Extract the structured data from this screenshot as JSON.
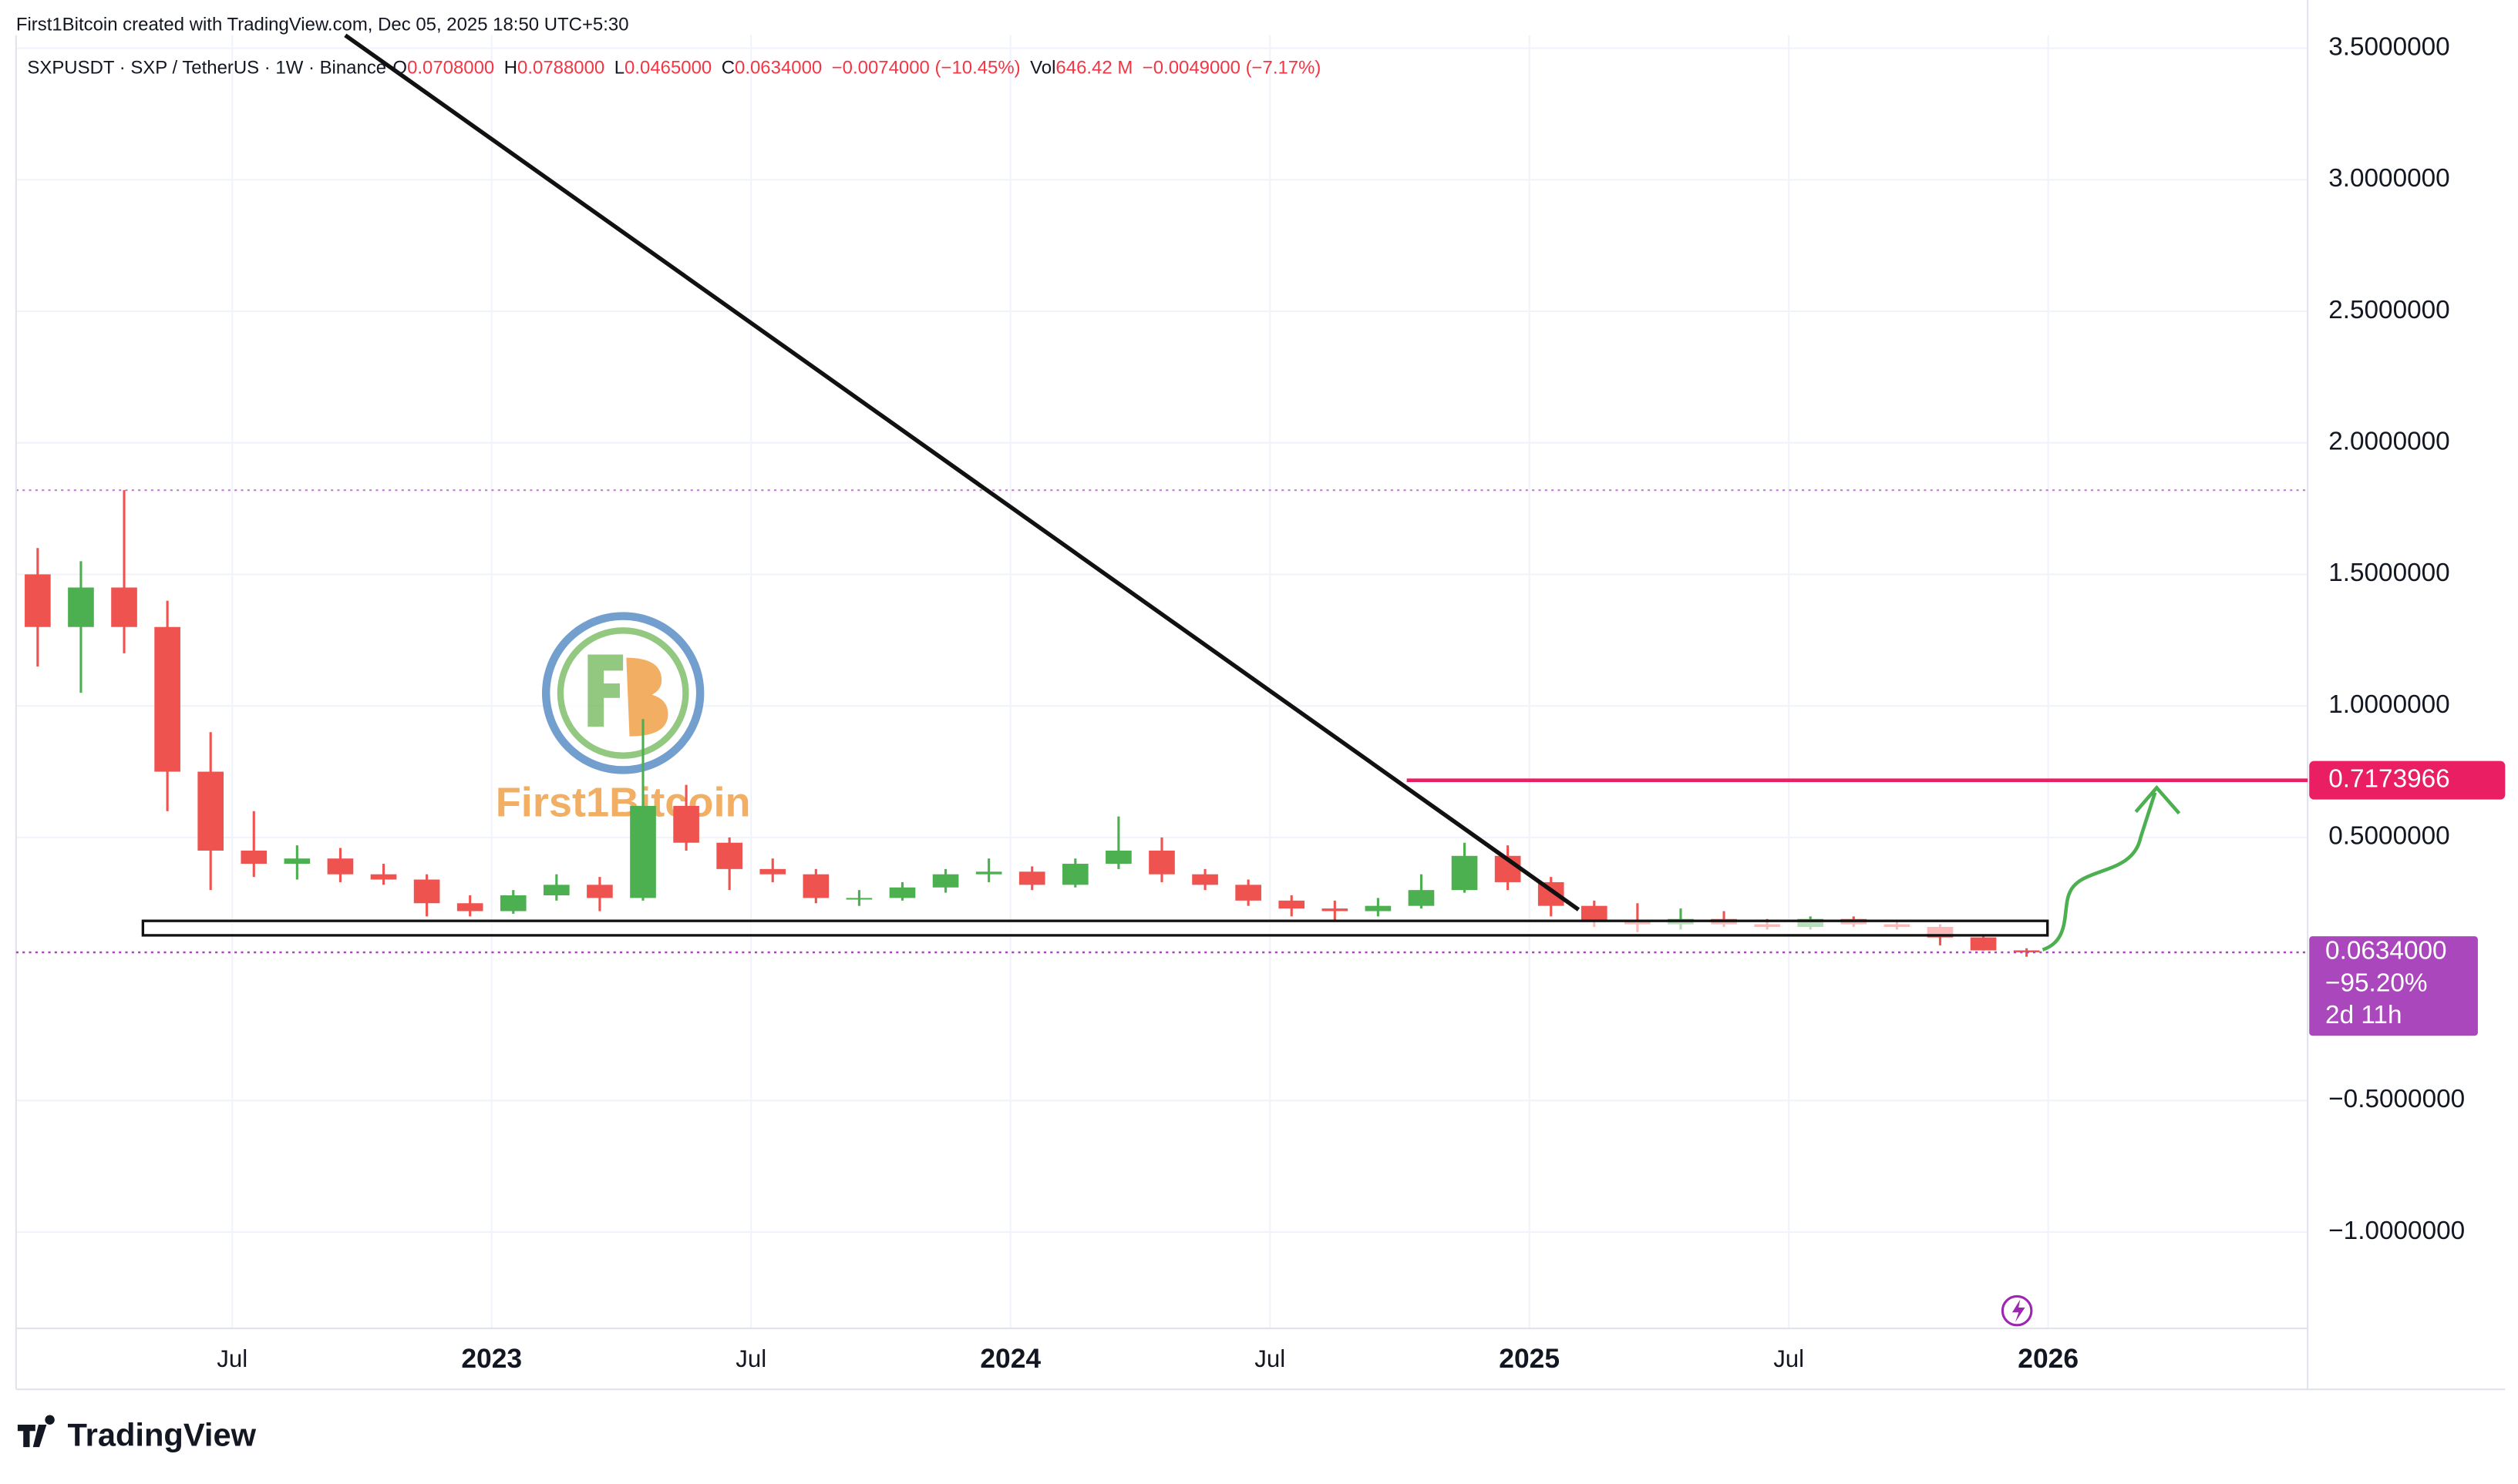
{
  "header": {
    "credit": "First1Bitcoin created with TradingView.com, Dec 05, 2025 18:50 UTC+5:30",
    "symbol": "SXPUSDT · SXP / TetherUS · 1W · Binance",
    "ohlc": [
      {
        "key": "O",
        "value": "0.0708000"
      },
      {
        "key": "H",
        "value": "0.0788000"
      },
      {
        "key": "L",
        "value": "0.0465000"
      },
      {
        "key": "C",
        "value": "0.0634000"
      }
    ],
    "change": "−0.0074000 (−10.45%)",
    "vol_key": "Vol",
    "vol": "646.42 M",
    "vol_change": "−0.0049000 (−7.17%)"
  },
  "watermark": "First1Bitcoin",
  "brand": "TradingView",
  "chart_data": {
    "type": "candlestick",
    "x": [
      "2022-02",
      "2022-03",
      "2022-04",
      "2022-05",
      "2022-06",
      "2022-07",
      "2022-08",
      "2022-09",
      "2022-10",
      "2022-11",
      "2022-12",
      "2023-01",
      "2023-02",
      "2023-03",
      "2023-04",
      "2023-05",
      "2023-06",
      "2023-07",
      "2023-08",
      "2023-09",
      "2023-10",
      "2023-11",
      "2023-12",
      "2024-01",
      "2024-02",
      "2024-03",
      "2024-04",
      "2024-05",
      "2024-06",
      "2024-07",
      "2024-08",
      "2024-09",
      "2024-10",
      "2024-11",
      "2024-12",
      "2025-01",
      "2025-02",
      "2025-03",
      "2025-04",
      "2025-05",
      "2025-06",
      "2025-07",
      "2025-08",
      "2025-09",
      "2025-10",
      "2025-11",
      "2025-12"
    ],
    "open": [
      1.5,
      1.3,
      1.45,
      1.3,
      0.75,
      0.45,
      0.4,
      0.42,
      0.36,
      0.34,
      0.25,
      0.22,
      0.28,
      0.32,
      0.27,
      0.62,
      0.48,
      0.38,
      0.36,
      0.27,
      0.27,
      0.31,
      0.36,
      0.37,
      0.32,
      0.4,
      0.45,
      0.36,
      0.32,
      0.26,
      0.23,
      0.22,
      0.24,
      0.3,
      0.43,
      0.33,
      0.24,
      0.18,
      0.17,
      0.19,
      0.17,
      0.16,
      0.19,
      0.17,
      0.16,
      0.12,
      0.0708
    ],
    "high": [
      1.6,
      1.55,
      1.82,
      1.4,
      0.9,
      0.6,
      0.47,
      0.46,
      0.4,
      0.36,
      0.28,
      0.3,
      0.36,
      0.35,
      0.95,
      0.7,
      0.5,
      0.42,
      0.38,
      0.3,
      0.33,
      0.38,
      0.42,
      0.39,
      0.42,
      0.58,
      0.5,
      0.38,
      0.34,
      0.28,
      0.26,
      0.27,
      0.36,
      0.48,
      0.47,
      0.35,
      0.26,
      0.25,
      0.23,
      0.22,
      0.19,
      0.2,
      0.2,
      0.18,
      0.17,
      0.13,
      0.0788
    ],
    "low": [
      1.15,
      1.05,
      1.2,
      0.6,
      0.3,
      0.35,
      0.34,
      0.33,
      0.32,
      0.2,
      0.2,
      0.21,
      0.26,
      0.22,
      0.26,
      0.45,
      0.3,
      0.33,
      0.25,
      0.24,
      0.26,
      0.29,
      0.33,
      0.3,
      0.31,
      0.38,
      0.33,
      0.3,
      0.24,
      0.2,
      0.18,
      0.2,
      0.23,
      0.29,
      0.3,
      0.2,
      0.16,
      0.14,
      0.15,
      0.16,
      0.15,
      0.15,
      0.16,
      0.15,
      0.09,
      0.07,
      0.0465
    ],
    "close": [
      1.3,
      1.45,
      1.3,
      0.75,
      0.45,
      0.4,
      0.42,
      0.36,
      0.34,
      0.25,
      0.22,
      0.28,
      0.32,
      0.27,
      0.62,
      0.48,
      0.38,
      0.36,
      0.27,
      0.27,
      0.31,
      0.36,
      0.37,
      0.32,
      0.4,
      0.45,
      0.36,
      0.32,
      0.26,
      0.23,
      0.22,
      0.24,
      0.3,
      0.43,
      0.33,
      0.24,
      0.18,
      0.17,
      0.19,
      0.17,
      0.16,
      0.19,
      0.17,
      0.16,
      0.12,
      0.0708,
      0.0634
    ],
    "up_color": "#4caf50",
    "down_color": "#ef5350",
    "xlim": [
      "2022-02",
      "2026-07"
    ],
    "xticks": [
      {
        "value": "2022-07",
        "label": "Jul"
      },
      {
        "value": "2023-01",
        "label": "2023"
      },
      {
        "value": "2023-07",
        "label": "Jul"
      },
      {
        "value": "2024-01",
        "label": "2024"
      },
      {
        "value": "2024-07",
        "label": "Jul"
      },
      {
        "value": "2025-01",
        "label": "2025"
      },
      {
        "value": "2025-07",
        "label": "Jul"
      },
      {
        "value": "2026-01",
        "label": "2026"
      }
    ],
    "ylim": [
      -1.366,
      3.549
    ],
    "yticks": [
      {
        "value": 3.5,
        "label": "3.5000000"
      },
      {
        "value": 3.0,
        "label": "3.0000000"
      },
      {
        "value": 2.5,
        "label": "2.5000000"
      },
      {
        "value": 2.0,
        "label": "2.0000000"
      },
      {
        "value": 1.5,
        "label": "1.5000000"
      },
      {
        "value": 1.0,
        "label": "1.0000000"
      },
      {
        "value": 0.5,
        "label": "0.5000000"
      },
      {
        "value": -0.5,
        "label": "−0.5000000"
      },
      {
        "value": -1.0,
        "label": "−1.0000000"
      }
    ],
    "grid": true,
    "level": 0.7173966,
    "level_color": "#e91e63",
    "last_price": {
      "value": 0.0634,
      "label": "0.0634000"
    },
    "last_change": {
      "value": -95.2,
      "label": "−95.20%"
    },
    "countdown": "2d 11h",
    "last_color": "#ab47bc"
  }
}
